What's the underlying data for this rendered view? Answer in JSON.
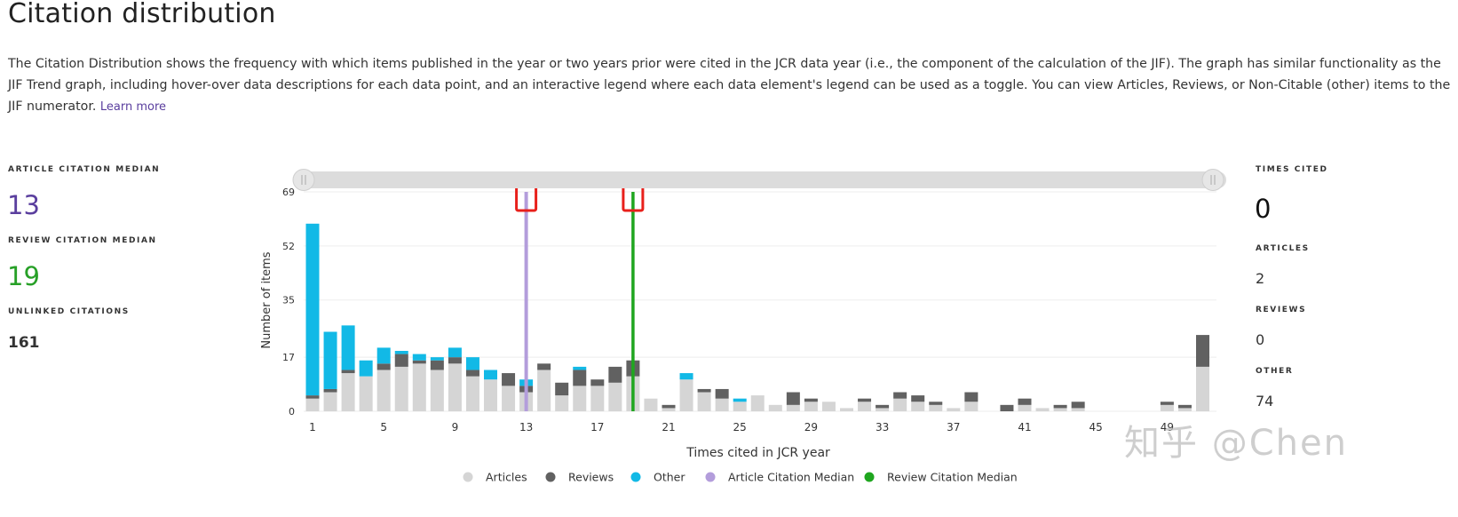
{
  "header": {
    "title": "Citation distribution",
    "description": "The Citation Distribution shows the frequency with which items published in the year or two years prior were cited in the JCR data year (i.e., the component of the calculation of the JIF). The graph has similar functionality as the JIF Trend graph, including hover-over data descriptions for each data point, and an interactive legend where each data element's legend can be used as a toggle. You can view Articles, Reviews, or Non-Citable (other) items to the JIF numerator.",
    "learn_more": "Learn more"
  },
  "left_stats": {
    "article_median_label": "ARTICLE CITATION MEDIAN",
    "article_median_value": "13",
    "review_median_label": "REVIEW CITATION MEDIAN",
    "review_median_value": "19",
    "unlinked_label": "UNLINKED CITATIONS",
    "unlinked_value": "161"
  },
  "right_stats": {
    "times_cited_label": "TIMES CITED",
    "times_cited_value": "0",
    "articles_label": "ARTICLES",
    "articles_value": "2",
    "reviews_label": "REVIEWS",
    "reviews_value": "0",
    "other_label": "OTHER",
    "other_value": "74"
  },
  "watermark": "知乎 @Chen",
  "colors": {
    "articles": "#d5d5d5",
    "reviews": "#616161",
    "other": "#12b9e6",
    "article_median": "#b39ddb",
    "review_median": "#1fa61f",
    "article_median_text": "#5a3e9e",
    "review_median_text": "#27a027"
  },
  "chart_data": {
    "type": "bar",
    "stacked": true,
    "xlabel": "Times cited in JCR year",
    "ylabel": "Number of items",
    "yticks": [
      0,
      17,
      35,
      52,
      69
    ],
    "ylim": [
      0,
      69
    ],
    "x": [
      1,
      2,
      3,
      4,
      5,
      6,
      7,
      8,
      9,
      10,
      11,
      12,
      13,
      14,
      15,
      16,
      17,
      18,
      19,
      20,
      21,
      22,
      23,
      24,
      25,
      26,
      27,
      28,
      29,
      30,
      31,
      32,
      33,
      34,
      35,
      36,
      37,
      38,
      39,
      40,
      41,
      42,
      43,
      44,
      45,
      46,
      47,
      48,
      49,
      50,
      51
    ],
    "xtick_labels": [
      "1",
      "5",
      "9",
      "13",
      "17",
      "21",
      "25",
      "29",
      "33",
      "37",
      "41",
      "45",
      "49"
    ],
    "series": [
      {
        "name": "Articles",
        "values": [
          4,
          6,
          12,
          11,
          13,
          14,
          15,
          13,
          15,
          11,
          10,
          8,
          6,
          13,
          5,
          8,
          8,
          9,
          11,
          4,
          1,
          10,
          6,
          4,
          3,
          5,
          2,
          2,
          3,
          3,
          1,
          3,
          1,
          4,
          3,
          2,
          1,
          3,
          0,
          0,
          2,
          1,
          1,
          1,
          0,
          0,
          0,
          0,
          2,
          1,
          14
        ]
      },
      {
        "name": "Reviews",
        "values": [
          1,
          1,
          1,
          0,
          2,
          4,
          1,
          3,
          2,
          2,
          0,
          4,
          2,
          2,
          4,
          5,
          2,
          5,
          5,
          0,
          1,
          0,
          1,
          3,
          0,
          0,
          0,
          4,
          1,
          0,
          0,
          1,
          1,
          2,
          2,
          1,
          0,
          3,
          0,
          2,
          2,
          0,
          1,
          2,
          0,
          0,
          0,
          0,
          1,
          1,
          10
        ]
      },
      {
        "name": "Other",
        "values": [
          54,
          18,
          14,
          5,
          5,
          1,
          2,
          1,
          3,
          4,
          3,
          0,
          2,
          0,
          0,
          1,
          0,
          0,
          0,
          0,
          0,
          2,
          0,
          0,
          1,
          0,
          0,
          0,
          0,
          0,
          0,
          0,
          0,
          0,
          0,
          0,
          0,
          0,
          0,
          0,
          0,
          0,
          0,
          0,
          0,
          0,
          0,
          0,
          0,
          0,
          0
        ]
      }
    ],
    "lines": [
      {
        "name": "Article Citation Median",
        "x": 13
      },
      {
        "name": "Review Citation Median",
        "x": 19
      }
    ],
    "legend": [
      "Articles",
      "Reviews",
      "Other",
      "Article Citation Median",
      "Review Citation Median"
    ],
    "legend_position": "bottom",
    "grid": true
  }
}
